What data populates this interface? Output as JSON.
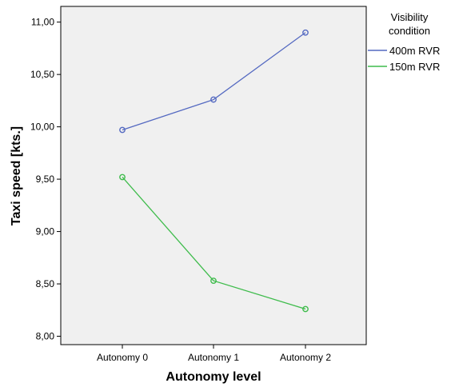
{
  "chart_data": {
    "type": "line",
    "xlabel": "Autonomy level",
    "ylabel": "Taxi speed [kts.]",
    "categories": [
      "Autonomy 0",
      "Autonomy 1",
      "Autonomy 2"
    ],
    "ylim": [
      7.92,
      11.15
    ],
    "y_ticks": [
      8.0,
      8.5,
      9.0,
      9.5,
      10.0,
      10.5,
      11.0
    ],
    "y_tick_labels": [
      "8,00",
      "8,50",
      "9,00",
      "9,50",
      "10,00",
      "10,50",
      "11,00"
    ],
    "grid": false,
    "legend": {
      "title_lines": [
        "Visibility",
        "condition"
      ],
      "placement": "right"
    },
    "series": [
      {
        "name": "400m RVR",
        "color": "#5469c1",
        "marker": "open-circle",
        "values": [
          9.97,
          10.26,
          10.9
        ]
      },
      {
        "name": "150m RVR",
        "color": "#3fbc4c",
        "marker": "open-circle",
        "values": [
          9.52,
          8.53,
          8.26
        ]
      }
    ],
    "colors": {
      "plot_background": "#f0f0f0",
      "axis": "#000000",
      "page_background": "#ffffff"
    }
  }
}
